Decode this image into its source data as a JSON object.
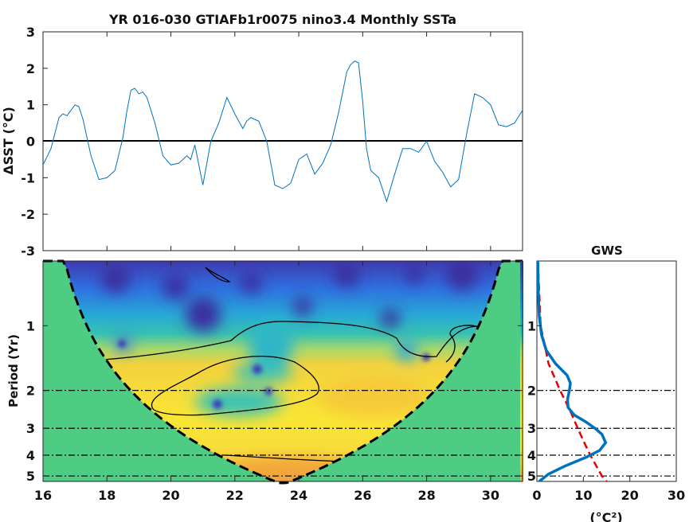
{
  "chart_data": [
    {
      "type": "line",
      "title": "YR 016-030 GTIAFb1r0075 nino3.4 Monthly SSTa",
      "ylabel": "ΔSST (°C)",
      "xlim": [
        16,
        31
      ],
      "ylim": [
        -3,
        3
      ],
      "yticks": [
        "-3",
        "-2",
        "-1",
        "0",
        "1",
        "2",
        "3"
      ],
      "zero_line": true,
      "line_color": "#0072bd",
      "series": [
        {
          "x": [
            16.0,
            16.25,
            16.5,
            16.62,
            16.75,
            17.0,
            17.12,
            17.25,
            17.5,
            17.75,
            18.0,
            18.25,
            18.5,
            18.62,
            18.75,
            18.87,
            19.0,
            19.12,
            19.25,
            19.5,
            19.75,
            20.0,
            20.25,
            20.5,
            20.62,
            20.75,
            21.0,
            21.25,
            21.5,
            21.75,
            22.0,
            22.25,
            22.37,
            22.5,
            22.62,
            22.75,
            23.0,
            23.25,
            23.5,
            23.75,
            24.0,
            24.25,
            24.5,
            24.75,
            25.0,
            25.25,
            25.5,
            25.62,
            25.75,
            25.87,
            26.0,
            26.12,
            26.25,
            26.5,
            26.75,
            27.0,
            27.25,
            27.5,
            27.75,
            28.0,
            28.25,
            28.5,
            28.75,
            29.0,
            29.25,
            29.5,
            29.75,
            30.0,
            30.25,
            30.5,
            30.75,
            31.0
          ],
          "y": [
            -0.65,
            -0.2,
            0.65,
            0.75,
            0.7,
            1.0,
            0.95,
            0.6,
            -0.4,
            -1.05,
            -1.0,
            -0.8,
            0.1,
            0.8,
            1.4,
            1.45,
            1.3,
            1.35,
            1.2,
            0.5,
            -0.4,
            -0.65,
            -0.6,
            -0.4,
            -0.5,
            -0.1,
            -1.2,
            0.0,
            0.5,
            1.2,
            0.75,
            0.35,
            0.55,
            0.65,
            0.6,
            0.55,
            0.0,
            -1.2,
            -1.3,
            -1.15,
            -0.5,
            -0.35,
            -0.9,
            -0.6,
            -0.1,
            0.8,
            1.9,
            2.1,
            2.2,
            2.15,
            1.1,
            -0.2,
            -0.8,
            -1.0,
            -1.65,
            -0.9,
            -0.2,
            -0.2,
            -0.3,
            0.0,
            -0.55,
            -0.85,
            -1.25,
            -1.05,
            0.2,
            1.3,
            1.2,
            1.0,
            0.45,
            0.4,
            0.5,
            0.85
          ]
        }
      ]
    },
    {
      "type": "heatmap",
      "ylabel": "Period (Yr)",
      "xlim": [
        16,
        31
      ],
      "xticks": [
        "16",
        "18",
        "20",
        "22",
        "24",
        "26",
        "28",
        "30"
      ],
      "yticks": [
        "1",
        "2",
        "3",
        "4",
        "5"
      ],
      "period_range": [
        0.5,
        5.3
      ],
      "reference_periods": [
        2,
        3,
        4,
        5
      ],
      "cone_of_influence_fill": "#4fcc84",
      "colormap": [
        "#3f2ea0",
        "#2f7de6",
        "#2fbcbd",
        "#b6e05a",
        "#f6e83a",
        "#f0a23a"
      ],
      "dominant_band_period_range": [
        1.7,
        5.0
      ],
      "contour": "95% significance"
    },
    {
      "type": "line",
      "title": "GWS",
      "xlabel": "(°C²)",
      "xlim": [
        0,
        30
      ],
      "xticks": [
        "0",
        "10",
        "20",
        "30"
      ],
      "yticks": [
        "1",
        "2",
        "3",
        "4",
        "5"
      ],
      "series": [
        {
          "style": "solid",
          "color": "#0072bd",
          "period": [
            0.5,
            0.7,
            0.9,
            1.1,
            1.3,
            1.5,
            1.7,
            1.85,
            2.0,
            2.2,
            2.4,
            2.6,
            2.8,
            3.0,
            3.2,
            3.5,
            3.8,
            4.1,
            4.5,
            4.9,
            5.3
          ],
          "power": [
            0.2,
            0.3,
            0.5,
            1.0,
            2.0,
            4.0,
            6.5,
            7.2,
            7.0,
            6.6,
            6.7,
            8.0,
            10.5,
            12.5,
            14.0,
            14.8,
            13.5,
            10.5,
            6.0,
            2.5,
            0.5
          ]
        },
        {
          "style": "dashed",
          "color": "#e60000",
          "period": [
            0.5,
            1.0,
            1.5,
            2.0,
            2.5,
            3.0,
            3.5,
            4.0,
            4.5,
            5.0,
            5.3
          ],
          "power": [
            0.2,
            0.8,
            2.5,
            5.0,
            7.2,
            8.8,
            10.2,
            11.5,
            12.8,
            14.0,
            15.0
          ]
        }
      ]
    }
  ]
}
